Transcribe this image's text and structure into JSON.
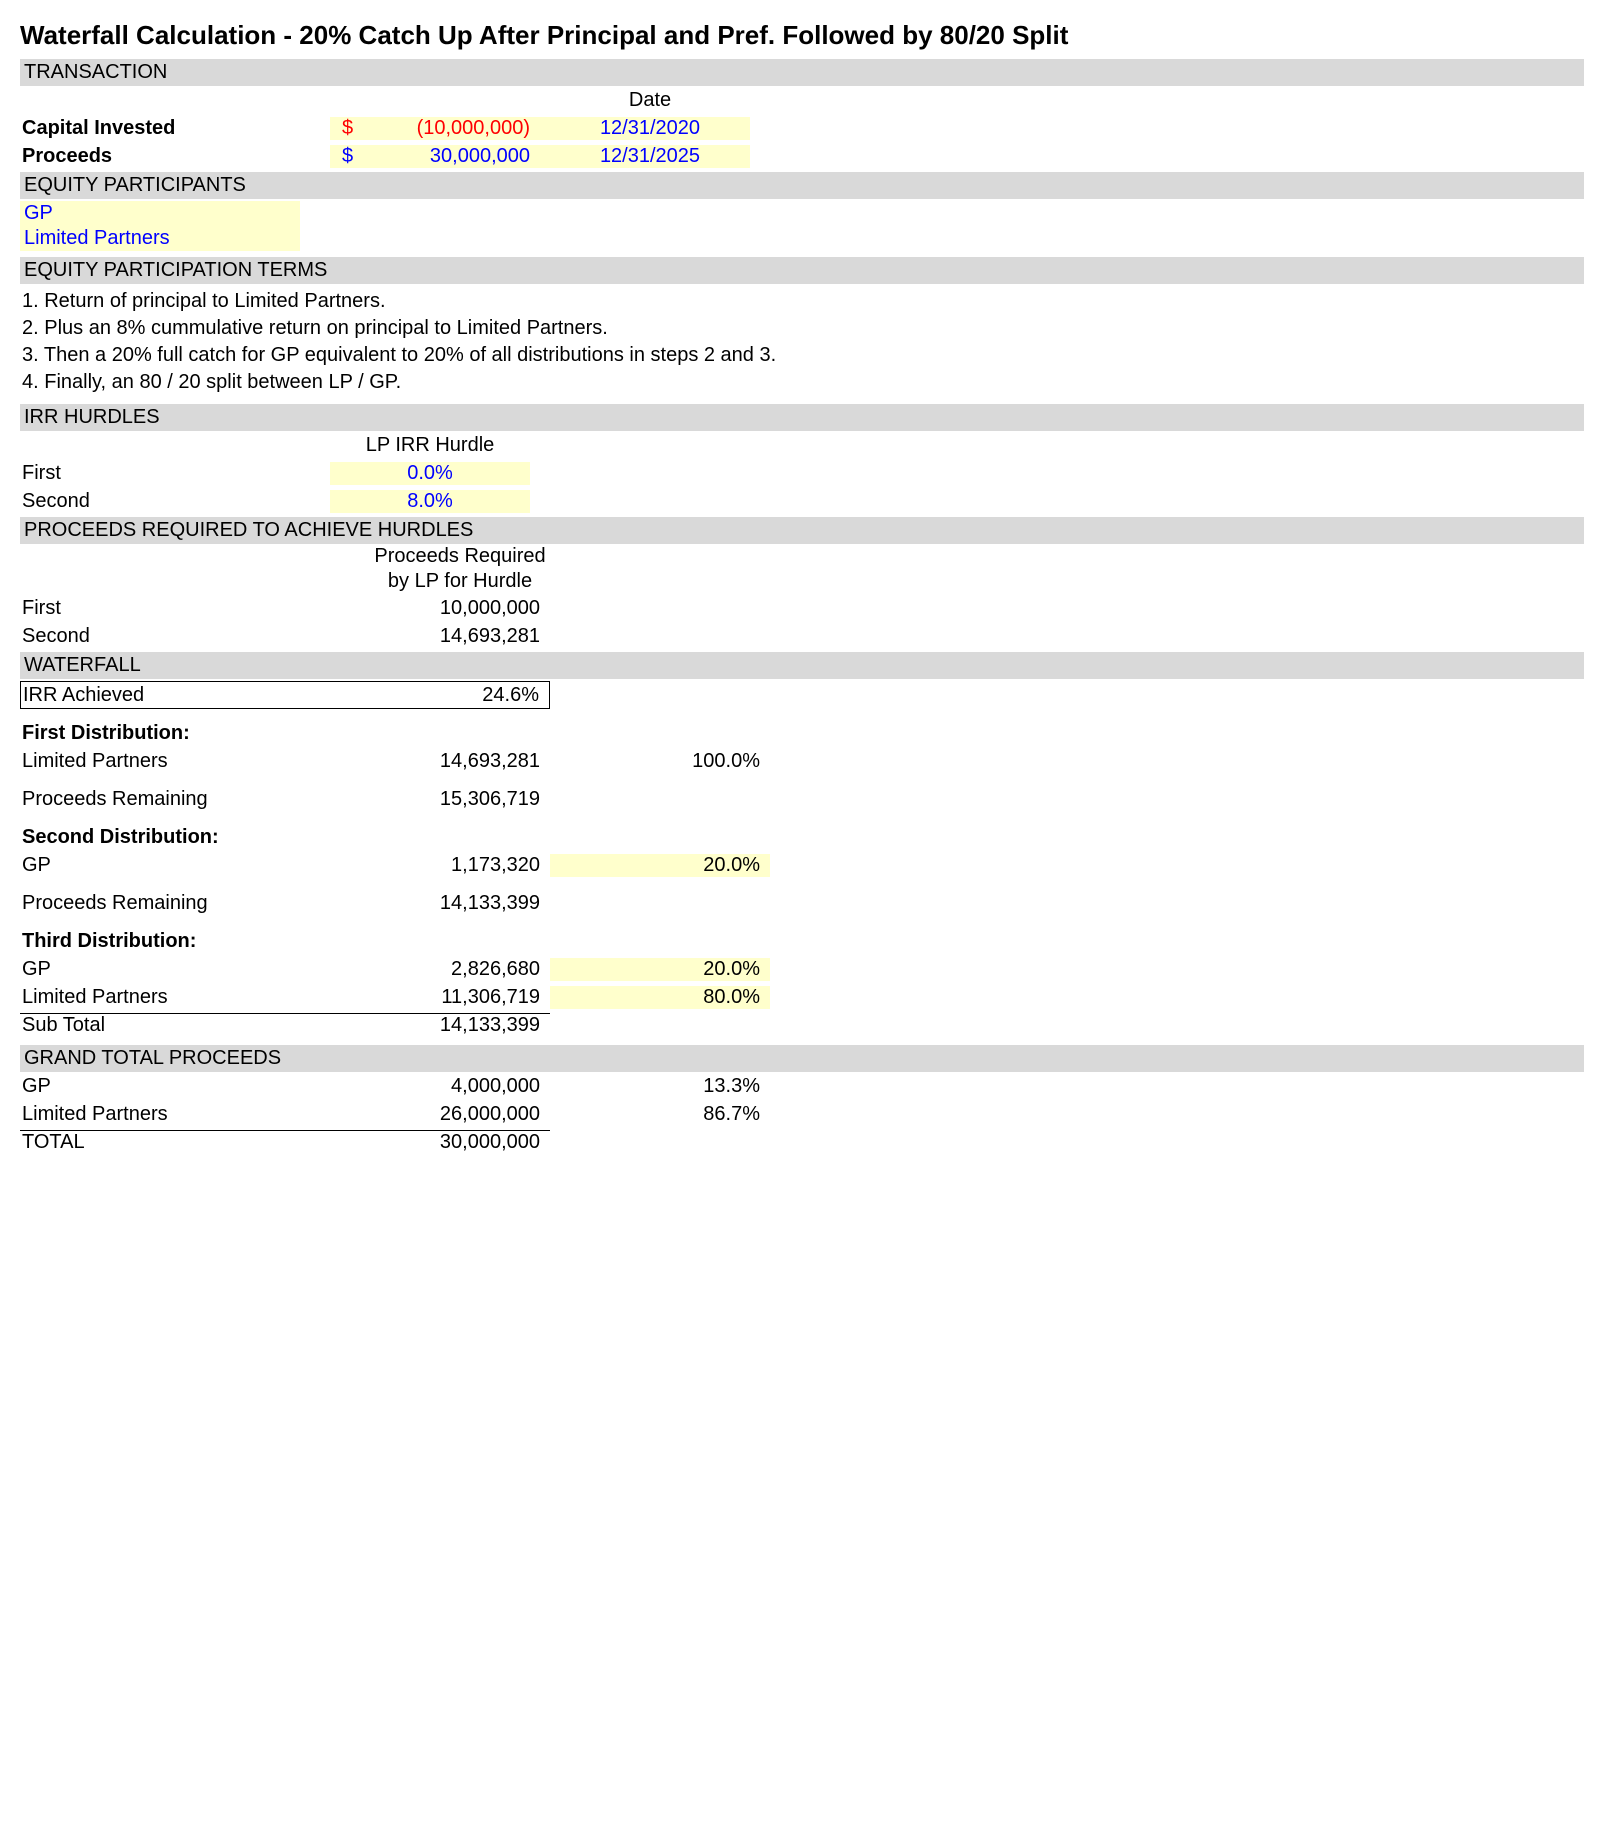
{
  "title": "Waterfall Calculation - 20% Catch Up After Principal and Pref. Followed by 80/20 Split",
  "colors": {
    "section_bg": "#d9d9d9",
    "highlight_bg": "#ffffcc",
    "input_blue": "#0000ff",
    "negative_red": "#ff0000",
    "text": "#000000",
    "page_bg": "#ffffff"
  },
  "sections": {
    "transaction": "TRANSACTION",
    "equity_participants": "EQUITY PARTICIPANTS",
    "equity_terms": "EQUITY PARTICIPATION TERMS",
    "irr_hurdles": "IRR HURDLES",
    "proceeds_required": "PROCEEDS REQUIRED TO ACHIEVE HURDLES",
    "waterfall": "WATERFALL",
    "grand_total": "GRAND TOTAL PROCEEDS"
  },
  "transaction": {
    "date_header": "Date",
    "rows": [
      {
        "label": "Capital Invested",
        "currency": "$",
        "value": "(10,000,000)",
        "value_style": "red",
        "date": "12/31/2020"
      },
      {
        "label": "Proceeds",
        "currency": "$",
        "value": "30,000,000",
        "value_style": "blue",
        "date": "12/31/2025"
      }
    ]
  },
  "participants": [
    "GP",
    "Limited Partners"
  ],
  "terms": [
    "1. Return of principal to Limited Partners.",
    "2. Plus an 8% cummulative return on principal to Limited Partners.",
    "3. Then a 20% full catch for GP equivalent to 20% of all distributions in steps 2 and 3.",
    "4. Finally, an 80 / 20 split between LP / GP."
  ],
  "irr_hurdles": {
    "header": "LP IRR Hurdle",
    "rows": [
      {
        "label": "First",
        "value": "0.0%"
      },
      {
        "label": "Second",
        "value": "8.0%"
      }
    ]
  },
  "proceeds_required": {
    "header_line1": "Proceeds Required",
    "header_line2": "by LP for Hurdle",
    "rows": [
      {
        "label": "First",
        "value": "10,000,000"
      },
      {
        "label": "Second",
        "value": "14,693,281"
      }
    ]
  },
  "waterfall": {
    "irr_achieved": {
      "label": "IRR Achieved",
      "value": "24.6%"
    },
    "dist1": {
      "title": "First Distribution:",
      "rows": [
        {
          "label": "Limited Partners",
          "value": "14,693,281",
          "pct": "100.0%",
          "pct_hl": false
        }
      ],
      "remaining": {
        "label": "Proceeds Remaining",
        "value": "15,306,719"
      }
    },
    "dist2": {
      "title": "Second Distribution:",
      "rows": [
        {
          "label": "GP",
          "value": "1,173,320",
          "pct": "20.0%",
          "pct_hl": true
        }
      ],
      "remaining": {
        "label": "Proceeds Remaining",
        "value": "14,133,399"
      }
    },
    "dist3": {
      "title": "Third Distribution:",
      "rows": [
        {
          "label": "GP",
          "value": "2,826,680",
          "pct": "20.0%",
          "pct_hl": true
        },
        {
          "label": "Limited Partners",
          "value": "11,306,719",
          "pct": "80.0%",
          "pct_hl": true
        }
      ],
      "subtotal": {
        "label": "Sub Total",
        "value": "14,133,399"
      }
    }
  },
  "grand_total": {
    "rows": [
      {
        "label": "GP",
        "value": "4,000,000",
        "pct": "13.3%"
      },
      {
        "label": "Limited Partners",
        "value": "26,000,000",
        "pct": "86.7%"
      }
    ],
    "total": {
      "label": "TOTAL",
      "value": "30,000,000"
    }
  }
}
